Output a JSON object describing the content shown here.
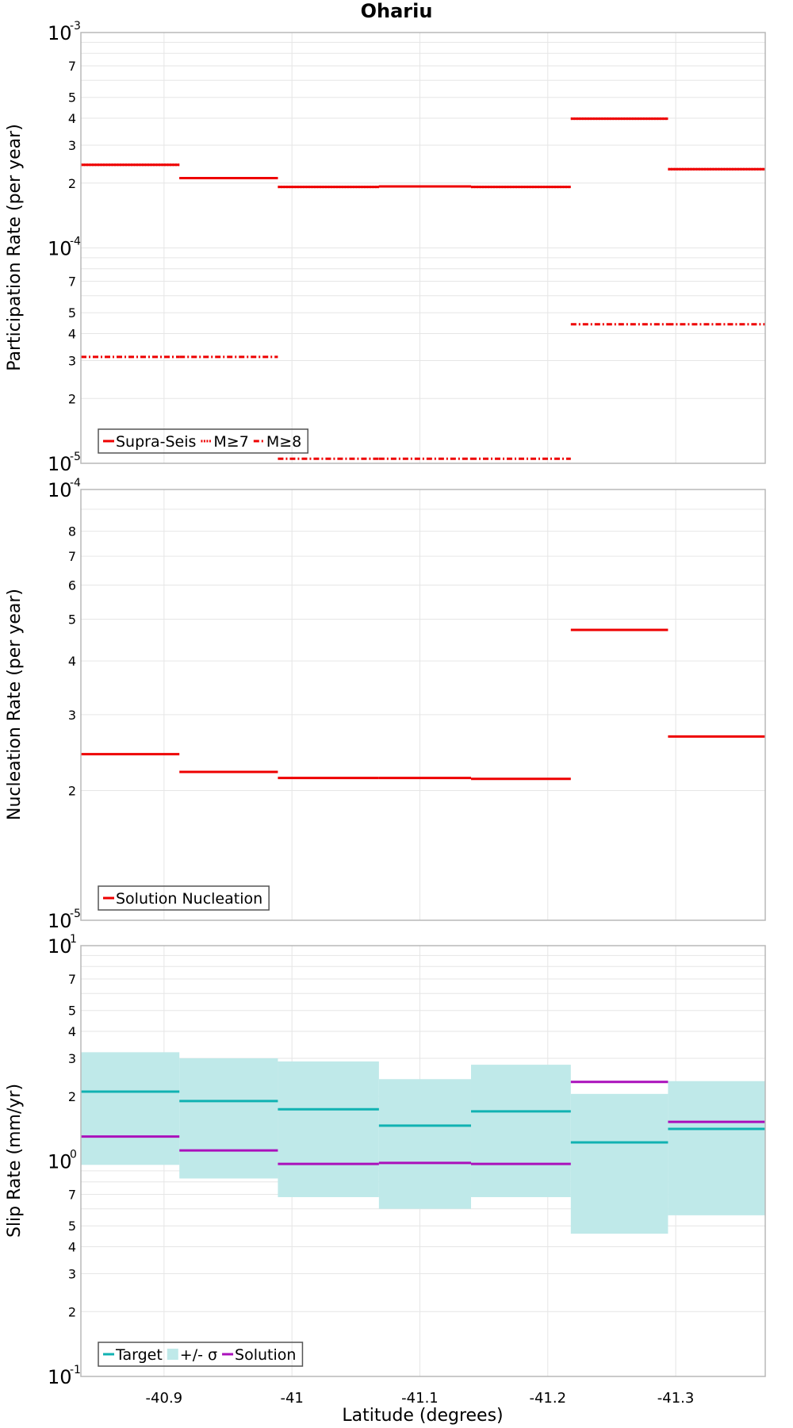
{
  "colors": {
    "red": "#ee0000",
    "target": "#10b2b2",
    "band": "#bfe9e9",
    "solution": "#aa10bb",
    "grid": "#e6e6e6",
    "frame": "#b8b8b8"
  },
  "chart_data": [
    {
      "type": "line",
      "title": "Ohariu",
      "xlabel": "",
      "ylabel": "Participation Rate (per year)",
      "yscale": "log",
      "ylim": [
        1e-05,
        0.001
      ],
      "xlim": [
        -40.835,
        -41.37
      ],
      "grid": true,
      "legend_position": "bottom-left",
      "legend": [
        "Supra-Seis",
        "M≥7",
        "M≥8"
      ],
      "bins": [
        [
          -40.835,
          -40.912
        ],
        [
          -40.912,
          -40.989
        ],
        [
          -40.989,
          -41.068
        ],
        [
          -41.068,
          -41.14
        ],
        [
          -41.14,
          -41.218
        ],
        [
          -41.218,
          -41.294
        ],
        [
          -41.294,
          -41.37
        ]
      ],
      "series": [
        {
          "name": "Supra-Seis",
          "style": "solid",
          "values": [
            0.000243,
            0.000211,
            0.000192,
            0.000193,
            0.000192,
            0.000398,
            0.000232
          ]
        },
        {
          "name": "M≥7",
          "style": "dotted",
          "values": [
            0.000243,
            0.000211,
            0.000192,
            0.000193,
            0.000192,
            0.000398,
            0.000232
          ]
        },
        {
          "name": "M≥8",
          "style": "dashdot",
          "values": [
            3.12e-05,
            3.12e-05,
            1.05e-05,
            1.05e-05,
            1.05e-05,
            4.42e-05,
            4.42e-05
          ]
        }
      ],
      "ticks": {
        "major": [
          {
            "base": "10",
            "exp": "-3"
          },
          {
            "base": "10",
            "exp": "-4"
          },
          {
            "base": "10",
            "exp": "-5"
          }
        ],
        "minor": [
          "7",
          "5",
          "4",
          "3",
          "2",
          "7",
          "5",
          "4",
          "3",
          "2"
        ]
      }
    },
    {
      "type": "line",
      "ylabel": "Nucleation Rate (per year)",
      "yscale": "log",
      "ylim": [
        1e-05,
        0.0001
      ],
      "xlim": [
        -40.835,
        -41.37
      ],
      "grid": true,
      "legend_position": "bottom-left",
      "legend": [
        "Solution Nucleation"
      ],
      "bins": [
        [
          -40.835,
          -40.912
        ],
        [
          -40.912,
          -40.989
        ],
        [
          -40.989,
          -41.068
        ],
        [
          -41.068,
          -41.14
        ],
        [
          -41.14,
          -41.218
        ],
        [
          -41.218,
          -41.294
        ],
        [
          -41.294,
          -41.37
        ]
      ],
      "series": [
        {
          "name": "Solution Nucleation",
          "style": "solid",
          "values": [
            2.43e-05,
            2.21e-05,
            2.14e-05,
            2.14e-05,
            2.13e-05,
            4.72e-05,
            2.67e-05
          ]
        }
      ],
      "ticks": {
        "major": [
          {
            "base": "10",
            "exp": "-4"
          },
          {
            "base": "10",
            "exp": "-5"
          }
        ],
        "minor": [
          "8",
          "7",
          "6",
          "5",
          "4",
          "3",
          "2"
        ]
      }
    },
    {
      "type": "line",
      "ylabel": "Slip Rate (mm/yr)",
      "xlabel": "Latitude (degrees)",
      "yscale": "log",
      "ylim": [
        0.1,
        10
      ],
      "xlim": [
        -40.835,
        -41.37
      ],
      "grid": true,
      "legend_position": "bottom-left",
      "legend": [
        "Target",
        "+/- σ",
        "Solution"
      ],
      "bins": [
        [
          -40.835,
          -40.912
        ],
        [
          -40.912,
          -40.989
        ],
        [
          -40.989,
          -41.068
        ],
        [
          -41.068,
          -41.14
        ],
        [
          -41.14,
          -41.218
        ],
        [
          -41.218,
          -41.294
        ],
        [
          -41.294,
          -41.37
        ]
      ],
      "series": [
        {
          "name": "Target",
          "style": "solid",
          "values": [
            2.1,
            1.9,
            1.74,
            1.46,
            1.7,
            1.22,
            1.41
          ]
        },
        {
          "name": "+/- σ",
          "style": "band",
          "lower": [
            0.96,
            0.83,
            0.68,
            0.6,
            0.68,
            0.46,
            0.56
          ],
          "upper": [
            3.2,
            3.0,
            2.9,
            2.4,
            2.8,
            2.05,
            2.35
          ]
        },
        {
          "name": "Solution",
          "style": "solid",
          "values": [
            1.3,
            1.12,
            0.97,
            0.98,
            0.97,
            2.33,
            1.52
          ]
        }
      ],
      "ticks": {
        "major": [
          {
            "base": "10",
            "exp": "1"
          },
          {
            "base": "10",
            "exp": "0"
          },
          {
            "base": "10",
            "exp": "-1"
          }
        ],
        "minor": [
          "7",
          "5",
          "4",
          "3",
          "2",
          "7",
          "5",
          "4",
          "3",
          "2"
        ]
      },
      "xticks": [
        "-40.9",
        "-41",
        "-41.1",
        "-41.2",
        "-41.3"
      ]
    }
  ]
}
